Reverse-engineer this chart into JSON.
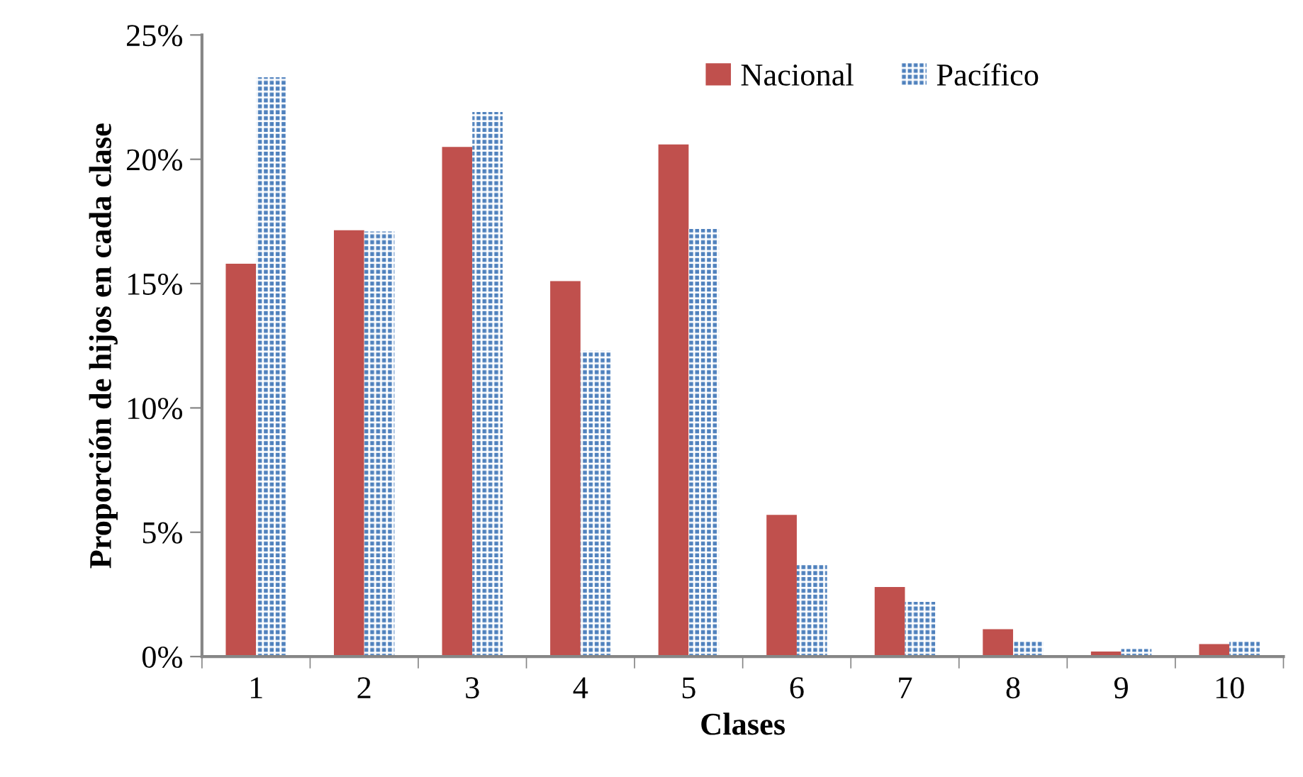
{
  "chart_data": {
    "type": "bar",
    "xlabel": "Clases",
    "ylabel": "Proporción de hijos en cada clase",
    "categories": [
      "1",
      "2",
      "3",
      "4",
      "5",
      "6",
      "7",
      "8",
      "9",
      "10"
    ],
    "series": [
      {
        "name": "Nacional",
        "color": "#c0504d",
        "values": [
          15.8,
          17.15,
          20.5,
          15.1,
          20.6,
          5.7,
          2.8,
          1.1,
          0.2,
          0.5
        ]
      },
      {
        "name": "Pacífico",
        "color": "#4f81bd",
        "values": [
          23.3,
          17.1,
          21.9,
          12.3,
          17.2,
          3.7,
          2.2,
          0.6,
          0.3,
          0.6
        ]
      }
    ],
    "ylim": [
      0,
      25
    ],
    "yticks": [
      {
        "value": 0,
        "label": "0%"
      },
      {
        "value": 5,
        "label": "5%"
      },
      {
        "value": 10,
        "label": "10%"
      },
      {
        "value": 15,
        "label": "15%"
      },
      {
        "value": 20,
        "label": "20%"
      },
      {
        "value": 25,
        "label": "25%"
      }
    ],
    "grid": false,
    "legend": "top"
  }
}
